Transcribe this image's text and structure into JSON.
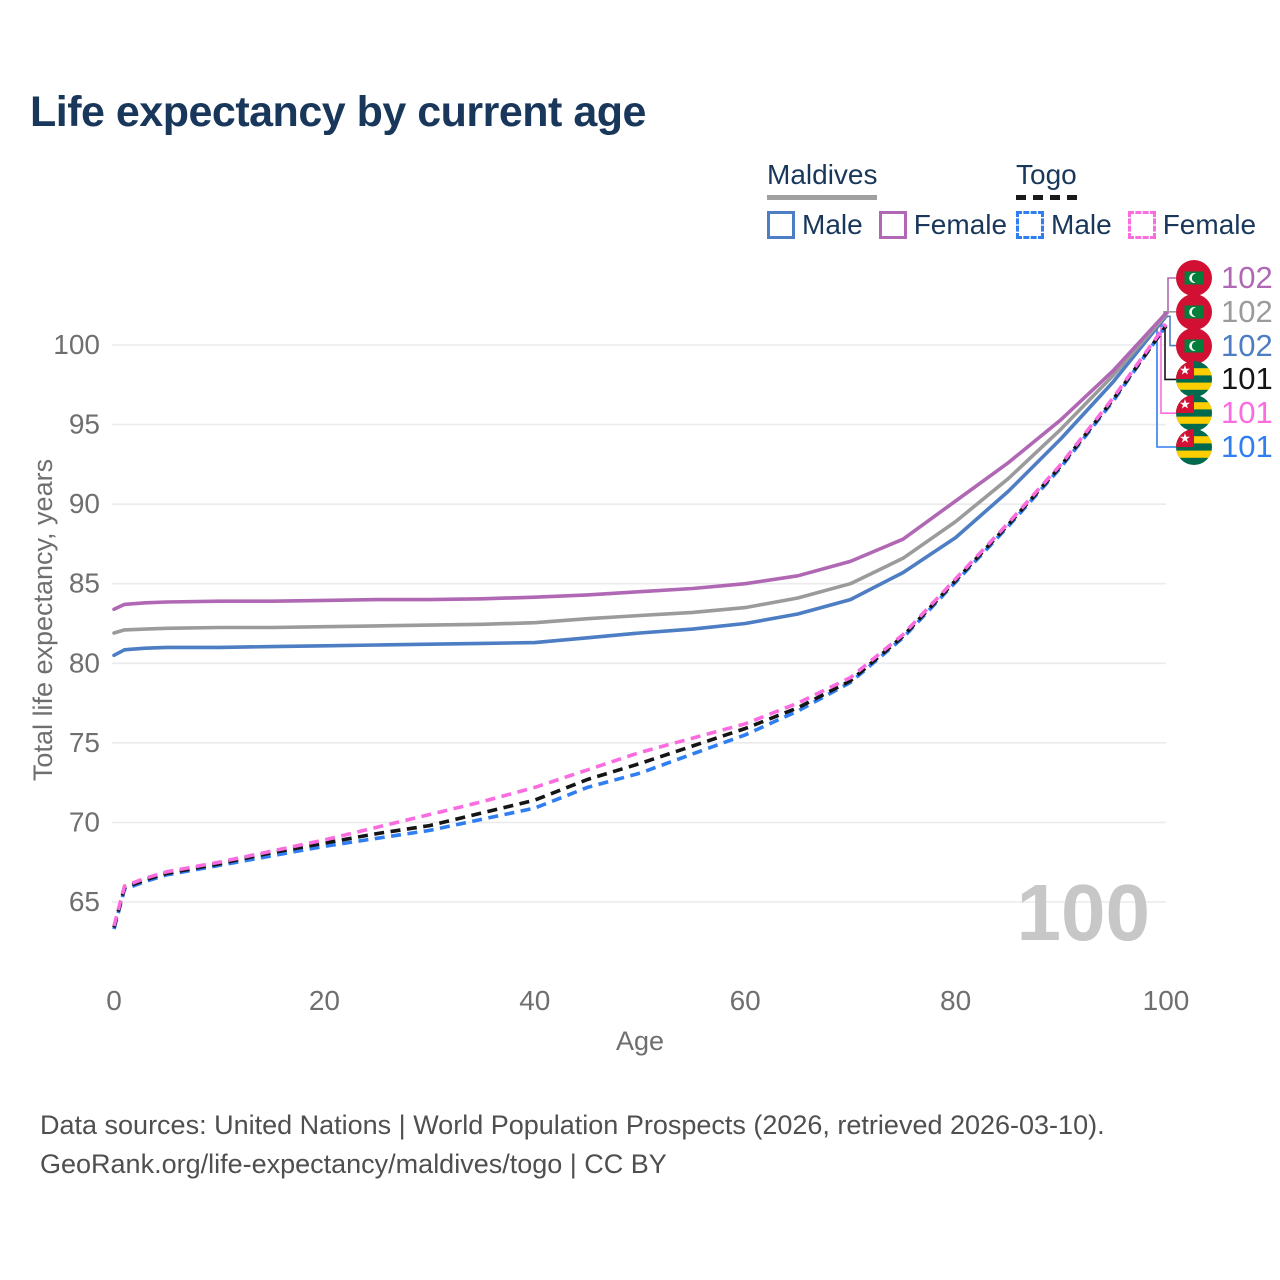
{
  "header": {
    "title": "Life expectancy by current age"
  },
  "colors": {
    "navy": "#18375a",
    "grid": "#ebebeb",
    "tick_text": "#6f6f6f",
    "axis_label_text": "#6f6f6f",
    "footer_text": "#4f4f4f",
    "watermark": "#c7c7c7",
    "maldives_underline": "#a0a0a0",
    "togo_underline": "#1a1a1a"
  },
  "legend": {
    "groups": [
      {
        "title": "Maldives",
        "underline_style": "solid",
        "items": [
          {
            "label": "Male",
            "color": "#4d7dc3",
            "box_style": "solid"
          },
          {
            "label": "Female",
            "color": "#b168b4",
            "box_style": "solid"
          }
        ]
      },
      {
        "title": "Togo",
        "underline_style": "dashed",
        "items": [
          {
            "label": "Male",
            "color": "#2f7ef2",
            "box_style": "dashed"
          },
          {
            "label": "Female",
            "color": "#fa6ce0",
            "box_style": "dashed"
          }
        ]
      }
    ]
  },
  "chart_data": {
    "type": "line",
    "title": "Life expectancy by current age",
    "xlabel": "Age",
    "ylabel": "Total life expectancy, years",
    "xlim": [
      0,
      100
    ],
    "ylim": [
      63,
      103
    ],
    "xticks": [
      0,
      20,
      40,
      60,
      80,
      100
    ],
    "yticks": [
      65,
      70,
      75,
      80,
      85,
      90,
      95,
      100
    ],
    "grid": "horizontal-only",
    "legend_position": "top-right",
    "watermark": "100",
    "x": [
      0,
      1,
      3,
      5,
      10,
      15,
      20,
      25,
      30,
      35,
      40,
      45,
      50,
      55,
      60,
      65,
      70,
      75,
      80,
      85,
      90,
      95,
      100
    ],
    "series": [
      {
        "name": "Maldives Female",
        "group": "Maldives",
        "sex": "Female",
        "style": "solid",
        "color": "#b168b4",
        "flag": "maldives",
        "end_label": "102",
        "values": [
          83.4,
          83.7,
          83.8,
          83.85,
          83.9,
          83.9,
          83.95,
          84.0,
          84.0,
          84.05,
          84.15,
          84.3,
          84.5,
          84.7,
          85.0,
          85.5,
          86.4,
          87.8,
          90.2,
          92.6,
          95.3,
          98.4,
          102.0
        ]
      },
      {
        "name": "Maldives Total",
        "group": "Maldives",
        "sex": "Both",
        "style": "solid",
        "color": "#9b9b9b",
        "flag": "maldives",
        "end_label": "102",
        "values": [
          81.9,
          82.1,
          82.15,
          82.2,
          82.25,
          82.25,
          82.3,
          82.35,
          82.4,
          82.45,
          82.55,
          82.8,
          83.0,
          83.2,
          83.5,
          84.1,
          85.0,
          86.6,
          88.9,
          91.6,
          94.7,
          98.1,
          101.9
        ]
      },
      {
        "name": "Maldives Male",
        "group": "Maldives",
        "sex": "Male",
        "style": "solid",
        "color": "#4d7dc3",
        "flag": "maldives",
        "end_label": "102",
        "values": [
          80.5,
          80.85,
          80.95,
          81.0,
          81.0,
          81.05,
          81.1,
          81.15,
          81.2,
          81.25,
          81.3,
          81.6,
          81.9,
          82.15,
          82.5,
          83.1,
          84.0,
          85.7,
          87.9,
          90.8,
          94.1,
          97.7,
          101.8
        ]
      },
      {
        "name": "Togo Total",
        "group": "Togo",
        "sex": "Both",
        "style": "dashed",
        "color": "#151515",
        "flag": "togo",
        "end_label": "101",
        "values": [
          63.4,
          65.9,
          66.4,
          66.8,
          67.4,
          68.1,
          68.7,
          69.3,
          69.8,
          70.6,
          71.4,
          72.7,
          73.7,
          74.8,
          75.9,
          77.2,
          78.9,
          81.7,
          85.2,
          88.7,
          92.4,
          96.6,
          101.2
        ]
      },
      {
        "name": "Togo Female",
        "group": "Togo",
        "sex": "Female",
        "style": "dashed",
        "color": "#fa6ce0",
        "flag": "togo",
        "end_label": "101",
        "values": [
          63.5,
          66.0,
          66.5,
          66.9,
          67.5,
          68.2,
          68.9,
          69.7,
          70.5,
          71.3,
          72.2,
          73.3,
          74.4,
          75.3,
          76.2,
          77.5,
          79.1,
          81.8,
          85.3,
          88.8,
          92.5,
          96.7,
          101.3
        ]
      },
      {
        "name": "Togo Male",
        "group": "Togo",
        "sex": "Male",
        "style": "dashed",
        "color": "#2f7ef2",
        "flag": "togo",
        "end_label": "101",
        "values": [
          63.3,
          65.8,
          66.3,
          66.7,
          67.3,
          67.9,
          68.5,
          69.0,
          69.5,
          70.2,
          70.9,
          72.2,
          73.1,
          74.3,
          75.5,
          77.0,
          78.8,
          81.6,
          85.1,
          88.6,
          92.3,
          96.5,
          101.2
        ]
      }
    ]
  },
  "footer": {
    "line1": "Data sources: United Nations | World Population Prospects (2026, retrieved 2026-03-10).",
    "line2": "GeoRank.org/life-expectancy/maldives/togo | CC BY"
  }
}
